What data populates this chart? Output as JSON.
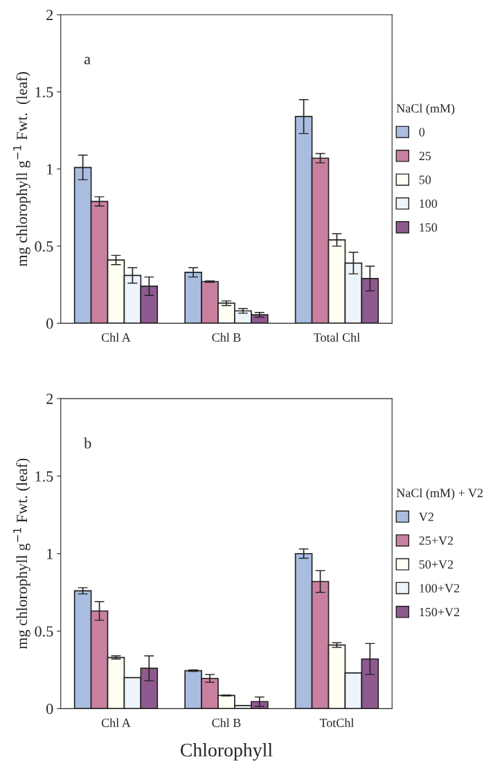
{
  "chart_data": [
    {
      "type": "bar",
      "annotations": [
        "a"
      ],
      "ylabel": "mg chlorophyll g$^{−1}$ Fwt.  (leaf)",
      "legend_title": "NaCl (mM)",
      "legend": "right",
      "categories": [
        "Chl A",
        "Chl B",
        "Total Chl"
      ],
      "ylim": [
        0,
        2
      ],
      "yticks": [
        0,
        0.5,
        1,
        1.5,
        2
      ],
      "series": [
        {
          "name": "0",
          "color": "#a9bde0",
          "values": [
            1.01,
            0.33,
            1.34
          ],
          "errors": [
            0.08,
            0.03,
            0.11
          ]
        },
        {
          "name": "25",
          "color": "#c9809f",
          "values": [
            0.79,
            0.27,
            1.07
          ],
          "errors": [
            0.03,
            0.005,
            0.03
          ]
        },
        {
          "name": "50",
          "color": "#fffff4",
          "values": [
            0.41,
            0.13,
            0.54
          ],
          "errors": [
            0.03,
            0.015,
            0.04
          ]
        },
        {
          "name": "100",
          "color": "#eef4fb",
          "values": [
            0.31,
            0.08,
            0.39
          ],
          "errors": [
            0.05,
            0.015,
            0.07
          ]
        },
        {
          "name": "150",
          "color": "#8f5a8f",
          "values": [
            0.24,
            0.055,
            0.29
          ],
          "errors": [
            0.06,
            0.015,
            0.08
          ]
        }
      ]
    },
    {
      "type": "bar",
      "annotations": [
        "b"
      ],
      "ylabel": "mg chlorophyll g$^{−1}$ Fwt. (leaf)",
      "xlabel": "Chlorophyll",
      "legend_title": "NaCl (mM) + V2",
      "legend": "right",
      "categories": [
        "Chl A",
        "Chl B",
        "TotChl"
      ],
      "ylim": [
        0,
        2
      ],
      "yticks": [
        0,
        0.5,
        1,
        1.5,
        2
      ],
      "series": [
        {
          "name": "V2",
          "color": "#a9bde0",
          "values": [
            0.76,
            0.245,
            1.0
          ],
          "errors": [
            0.02,
            0.005,
            0.03
          ]
        },
        {
          "name": "25+V2",
          "color": "#c9809f",
          "values": [
            0.63,
            0.195,
            0.82
          ],
          "errors": [
            0.06,
            0.025,
            0.07
          ]
        },
        {
          "name": "50+V2",
          "color": "#fffff4",
          "values": [
            0.33,
            0.085,
            0.41
          ],
          "errors": [
            0.01,
            0.003,
            0.015
          ]
        },
        {
          "name": "100+V2",
          "color": "#eef4fb",
          "values": [
            0.2,
            0.02,
            0.23
          ],
          "errors": [
            null,
            null,
            null
          ]
        },
        {
          "name": "150+V2",
          "color": "#8f5a8f",
          "values": [
            0.26,
            0.045,
            0.32
          ],
          "errors": [
            0.08,
            0.03,
            0.1
          ]
        }
      ]
    }
  ]
}
